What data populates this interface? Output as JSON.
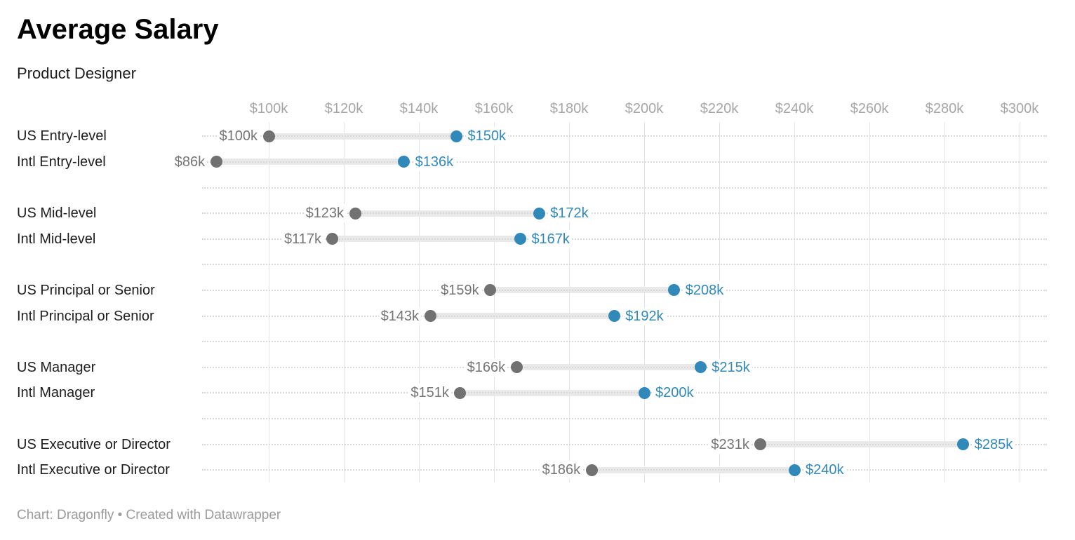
{
  "chart_data": {
    "type": "dumbbell-range",
    "title": "Average Salary",
    "subtitle": "Product Designer",
    "x_axis": {
      "tick_labels": [
        "$100k",
        "$120k",
        "$140k",
        "$160k",
        "$180k",
        "$200k",
        "$220k",
        "$240k",
        "$260k",
        "$280k",
        "$300k"
      ],
      "tick_values": [
        100,
        120,
        140,
        160,
        180,
        200,
        220,
        240,
        260,
        280,
        300
      ],
      "grid": true
    },
    "value_unit": "$k",
    "groups": [
      {
        "rows": [
          {
            "label": "US Entry-level",
            "start": 100,
            "end": 150,
            "start_label": "$100k",
            "end_label": "$150k"
          },
          {
            "label": "Intl Entry-level",
            "start": 86,
            "end": 136,
            "start_label": "$86k",
            "end_label": "$136k"
          }
        ]
      },
      {
        "rows": [
          {
            "label": "US Mid-level",
            "start": 123,
            "end": 172,
            "start_label": "$123k",
            "end_label": "$172k"
          },
          {
            "label": "Intl Mid-level",
            "start": 117,
            "end": 167,
            "start_label": "$117k",
            "end_label": "$167k"
          }
        ]
      },
      {
        "rows": [
          {
            "label": "US Principal or Senior",
            "start": 159,
            "end": 208,
            "start_label": "$159k",
            "end_label": "$208k"
          },
          {
            "label": "Intl Principal or Senior",
            "start": 143,
            "end": 192,
            "start_label": "$143k",
            "end_label": "$192k"
          }
        ]
      },
      {
        "rows": [
          {
            "label": "US Manager",
            "start": 166,
            "end": 215,
            "start_label": "$166k",
            "end_label": "$215k"
          },
          {
            "label": "Intl Manager",
            "start": 151,
            "end": 200,
            "start_label": "$151k",
            "end_label": "$200k"
          }
        ]
      },
      {
        "rows": [
          {
            "label": "US Executive or Director",
            "start": 231,
            "end": 285,
            "start_label": "$231k",
            "end_label": "$285k"
          },
          {
            "label": "Intl Executive or Director",
            "start": 186,
            "end": 240,
            "start_label": "$186k",
            "end_label": "$240k"
          }
        ]
      }
    ]
  },
  "footer": {
    "text": "Chart: Dragonfly • Created with Datawrapper"
  },
  "colors": {
    "start_dot": "#717171",
    "end_dot": "#3189ba",
    "start_value_label": "#757575",
    "end_value_label": "#3189ba",
    "range_bar": "#e9e9e9",
    "leader_dots": "#d9d9d9",
    "gridline": "#e4e4e4",
    "axis_label": "#a6a6a6",
    "row_label": "#1d1d1d",
    "footer_text": "#9b9b9b"
  }
}
